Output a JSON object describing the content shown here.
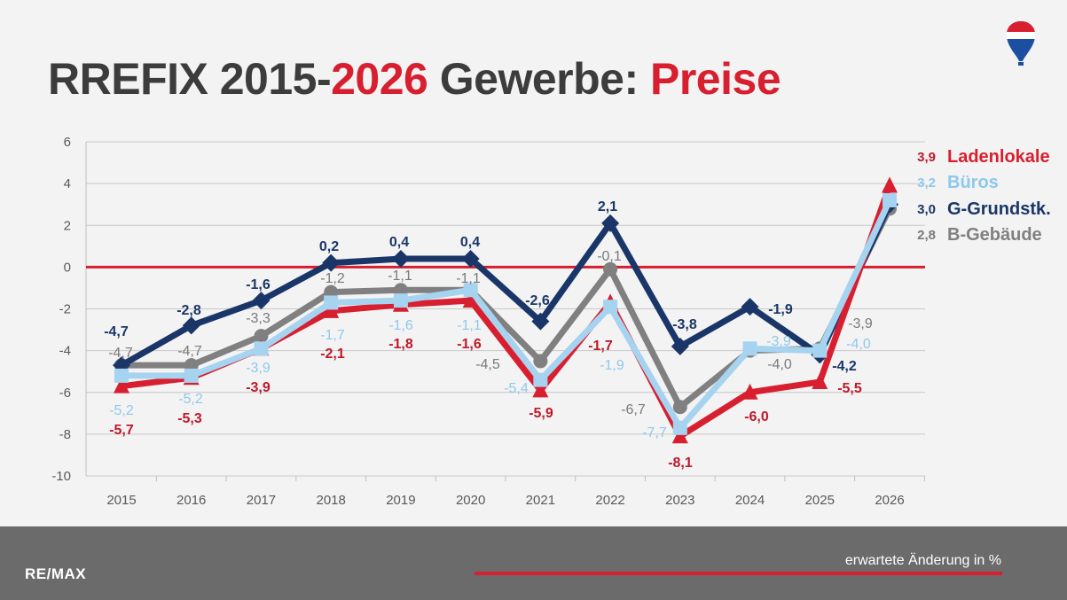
{
  "title": {
    "part1": "RREFIX 2015-",
    "part2": "2026",
    "part3": " Gewerbe: ",
    "part4": "Preise"
  },
  "footer": {
    "brand": "RE/MAX",
    "note": "erwartete Änderung in %"
  },
  "logo": {
    "text": "RE/MAX"
  },
  "colors": {
    "accent": "#d71f30",
    "dark": "#3c3c3c"
  },
  "chart_data": {
    "type": "line",
    "title": "",
    "x": [
      "2015",
      "2016",
      "2017",
      "2018",
      "2019",
      "2020",
      "2021",
      "2022",
      "2023",
      "2024",
      "2025",
      "2026"
    ],
    "ylim": [
      -10,
      6
    ],
    "yticks": [
      -10,
      -8,
      -6,
      -4,
      -2,
      0,
      2,
      4,
      6
    ],
    "grid": true,
    "legend": "right",
    "reference_line": 0,
    "series": [
      {
        "name": "Ladenlokale",
        "color": "#d71f30",
        "marker": "triangle",
        "labels": [
          "-5,7",
          "-5,3",
          "-3,9",
          "-2,1",
          "-1,8",
          "-1,6",
          "-5,9",
          "-1,7",
          "-8,1",
          "-6,0",
          "-5,5",
          "3,9"
        ],
        "values": [
          -5.7,
          -5.3,
          -3.9,
          -2.1,
          -1.8,
          -1.6,
          -5.9,
          -1.7,
          -8.1,
          -6.0,
          -5.5,
          3.9
        ]
      },
      {
        "name": "Büros",
        "color": "#a6d3f0",
        "marker": "square",
        "labels": [
          "-5,2",
          "-5,2",
          "-3,9",
          "-1,7",
          "-1,6",
          "-1,1",
          "-5,4",
          "-1,9",
          "-7,7",
          "-3,9",
          "-4,0",
          "3,2"
        ],
        "values": [
          -5.2,
          -5.2,
          -3.9,
          -1.7,
          -1.6,
          -1.1,
          -5.4,
          -1.9,
          -7.7,
          -3.9,
          -4.0,
          3.2
        ]
      },
      {
        "name": "G-Grundstk.",
        "color": "#1a3668",
        "marker": "diamond",
        "labels": [
          "-4,7",
          "-2,8",
          "-1,6",
          "0,2",
          "0,4",
          "0,4",
          "-2,6",
          "2,1",
          "-3,8",
          "-1,9",
          "-4,2",
          "3,0"
        ],
        "values": [
          -4.7,
          -2.8,
          -1.6,
          0.2,
          0.4,
          0.4,
          -2.6,
          2.1,
          -3.8,
          -1.9,
          -4.2,
          3.0
        ]
      },
      {
        "name": "B-Gebäude",
        "color": "#808080",
        "marker": "circle",
        "labels": [
          "-4,7",
          "-4,7",
          "-3,3",
          "-1,2",
          "-1,1",
          "-1,1",
          "-4,5",
          "-0,1",
          "-6,7",
          "-4,0",
          "-3,9",
          "2,8"
        ],
        "values": [
          -4.7,
          -4.7,
          -3.3,
          -1.2,
          -1.1,
          -1.1,
          -4.5,
          -0.1,
          -6.7,
          -4.0,
          -3.9,
          2.8
        ]
      }
    ]
  }
}
